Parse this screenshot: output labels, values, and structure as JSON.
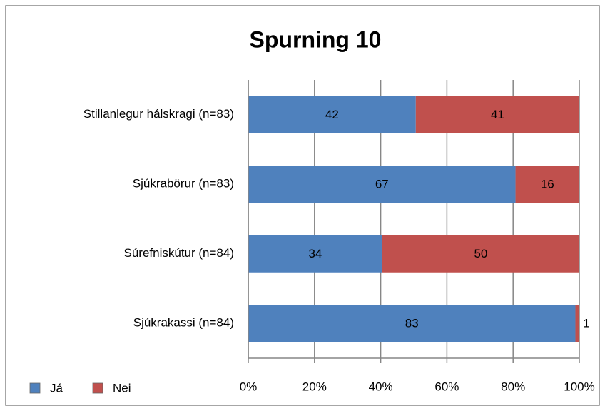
{
  "chart_data": {
    "type": "bar",
    "orientation": "horizontal",
    "stacking": "percent",
    "title": "Spurning 10",
    "categories": [
      "Stillanlegur hálskragi (n=83)",
      "Sjúkrabörur (n=83)",
      "Súrefniskútur (n=84)",
      "Sjúkrakassi (n=84)"
    ],
    "series": [
      {
        "name": "Já",
        "color": "#4f81bd",
        "values": [
          42,
          67,
          34,
          83
        ]
      },
      {
        "name": "Nei",
        "color": "#c0504d",
        "values": [
          41,
          16,
          50,
          1
        ]
      }
    ],
    "xlim": [
      0,
      100
    ],
    "xticks": [
      {
        "value": 0,
        "label": "0%"
      },
      {
        "value": 20,
        "label": "20%"
      },
      {
        "value": 40,
        "label": "40%"
      },
      {
        "value": 60,
        "label": "60%"
      },
      {
        "value": 80,
        "label": "80%"
      },
      {
        "value": 100,
        "label": "100%"
      }
    ],
    "grid": true,
    "legend": "bottom-left"
  }
}
